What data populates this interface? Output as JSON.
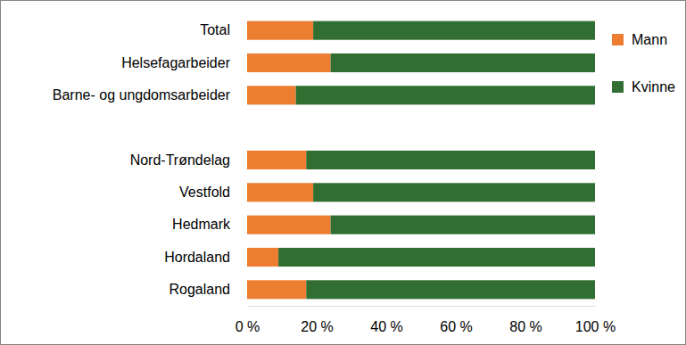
{
  "chart_data": {
    "type": "bar",
    "orientation": "horizontal",
    "stacked": true,
    "categories": [
      "Total",
      "Helsefagarbeider",
      "Barne- og ungdomsarbeider",
      null,
      "Nord-Trøndelag",
      "Vestfold",
      "Hedmark",
      "Hordaland",
      "Rogaland"
    ],
    "series": [
      {
        "name": "Mann",
        "color": "#ED7D31",
        "values": [
          19,
          24,
          14,
          null,
          17,
          19,
          24,
          9,
          17
        ]
      },
      {
        "name": "Kvinne",
        "color": "#306F31",
        "values": [
          81,
          76,
          86,
          null,
          83,
          81,
          76,
          91,
          83
        ]
      }
    ],
    "xlim": [
      0,
      100
    ],
    "xticks": [
      {
        "value": 0,
        "label": "0 %"
      },
      {
        "value": 20,
        "label": "20 %"
      },
      {
        "value": 40,
        "label": "40 %"
      },
      {
        "value": 60,
        "label": "60 %"
      },
      {
        "value": 80,
        "label": "80 %"
      },
      {
        "value": 100,
        "label": "100 %"
      }
    ],
    "grid": false,
    "legend": "top right"
  }
}
